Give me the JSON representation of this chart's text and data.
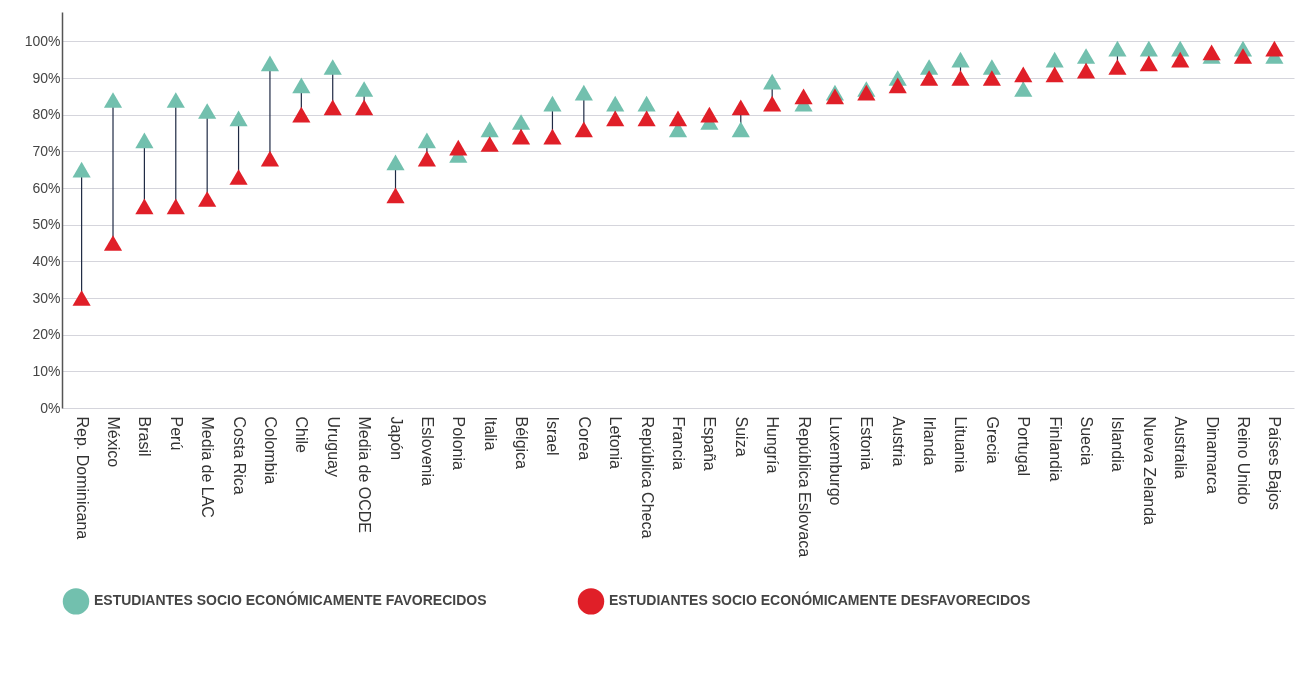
{
  "chart_data": {
    "type": "scatter",
    "marker": "triangle",
    "grid": "y",
    "legend": "bottom",
    "categories": [
      "Rep. Dominicana",
      "México",
      "Brasil",
      "Perú",
      "Media de LAC",
      "Costa Rica",
      "Colombia",
      "Chile",
      "Uruguay",
      "Media de OCDE",
      "Japón",
      "Eslovenia",
      "Polonia",
      "Italia",
      "Bélgica",
      "Israel",
      "Corea",
      "Letonia",
      "República Checa",
      "Francia",
      "España",
      "Suiza",
      "Hungría",
      "República Eslovaca",
      "Luxemburgo",
      "Estonia",
      "Austria",
      "Irlanda",
      "Lituania",
      "Grecia",
      "Portugal",
      "Finlandia",
      "Suecia",
      "Islandia",
      "Nueva Zelanda",
      "Australia",
      "Dinamarca",
      "Reino Unido",
      "Países Bajos"
    ],
    "series": [
      {
        "name": "ESTUDIANTES SOCIO ECONÓMICAMENTE FAVORECIDOS",
        "color": "#72c0ae",
        "values": [
          65,
          84,
          73,
          84,
          81,
          79,
          94,
          88,
          93,
          87,
          67,
          73,
          69,
          76,
          78,
          83,
          86,
          83,
          83,
          76,
          78,
          76,
          89,
          83,
          86,
          87,
          90,
          93,
          95,
          93,
          87,
          95,
          96,
          98,
          98,
          98,
          96,
          98,
          96
        ]
      },
      {
        "name": "ESTUDIANTES SOCIO ECONÓMICAMENTE DESFAVORECIDOS",
        "color": "#e01f28",
        "values": [
          30,
          45,
          55,
          55,
          57,
          63,
          68,
          80,
          82,
          82,
          58,
          68,
          71,
          72,
          74,
          74,
          76,
          79,
          79,
          79,
          80,
          82,
          83,
          85,
          85,
          86,
          88,
          90,
          90,
          90,
          91,
          91,
          92,
          93,
          94,
          95,
          97,
          96,
          98
        ]
      }
    ],
    "ylim": [
      0,
      108
    ],
    "yticks": [
      {
        "value": 0,
        "label": "0%"
      },
      {
        "value": 10,
        "label": "10%"
      },
      {
        "value": 20,
        "label": "20%"
      },
      {
        "value": 30,
        "label": "30%"
      },
      {
        "value": 40,
        "label": "40%"
      },
      {
        "value": 50,
        "label": "50%"
      },
      {
        "value": 60,
        "label": "60%"
      },
      {
        "value": 70,
        "label": "70%"
      },
      {
        "value": 80,
        "label": "80%"
      },
      {
        "value": 90,
        "label": "90%"
      },
      {
        "value": 100,
        "label": "100%"
      }
    ]
  }
}
